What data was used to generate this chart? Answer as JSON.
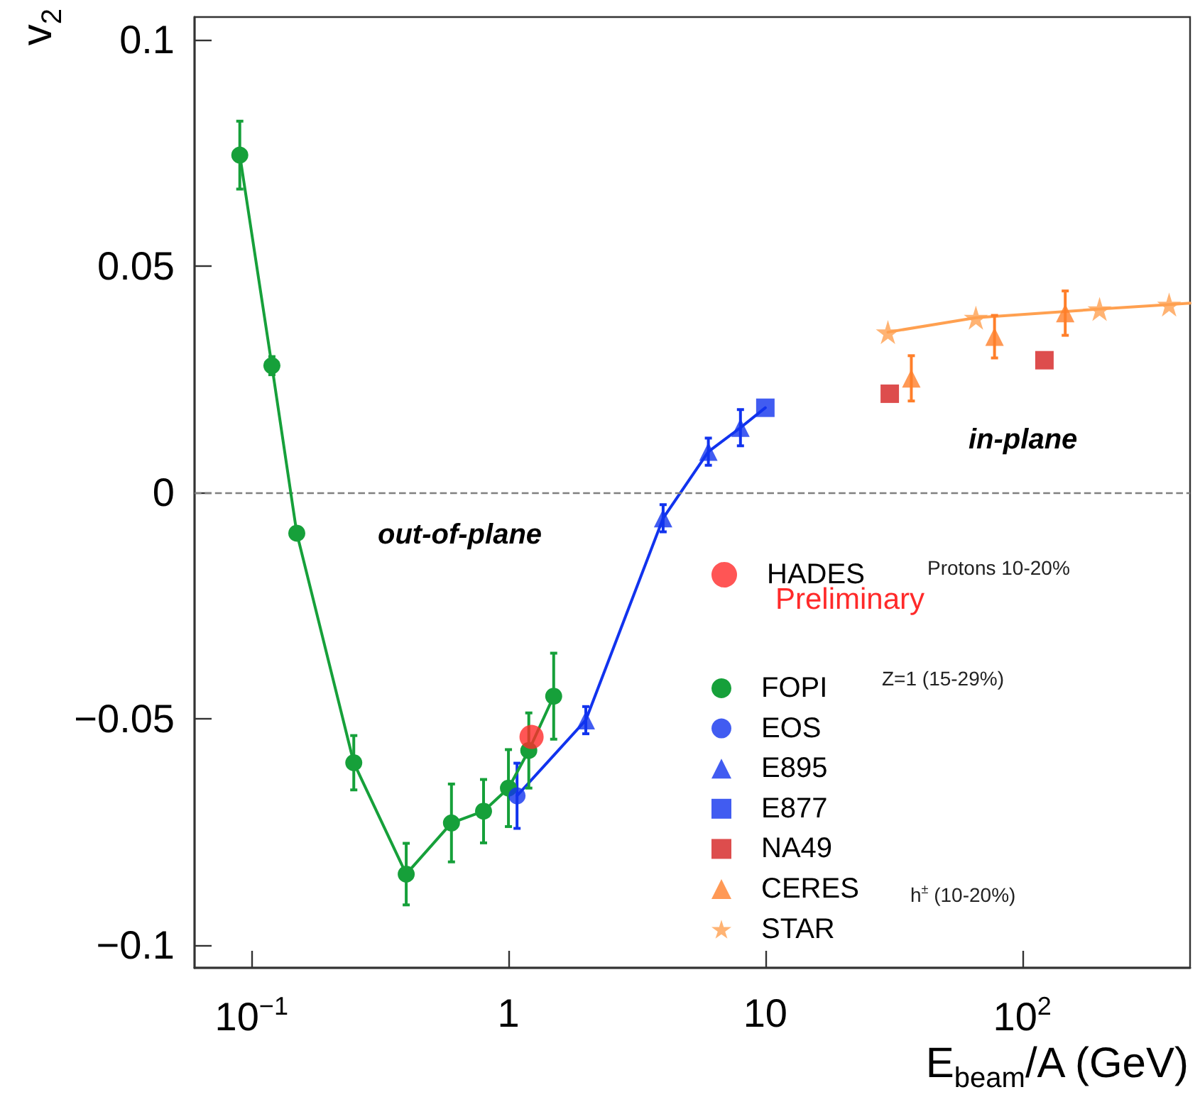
{
  "chart_data": {
    "type": "scatter",
    "xlabel": "E$_{beam}$/A (GeV)",
    "ylabel": "v$_{2}$",
    "log": "x",
    "xlim": [
      0.06,
      450
    ],
    "ylim": [
      -0.105,
      0.105
    ],
    "xticks": [
      {
        "value": 0.1,
        "label": "10$^{−1}$"
      },
      1,
      10,
      {
        "value": 100,
        "label": "10$^{2}$"
      }
    ],
    "yticks": [
      {
        "value": -0.1,
        "label": "−0.1"
      },
      {
        "value": -0.05,
        "label": "−0.05"
      },
      0,
      0.05,
      0.1
    ],
    "grid": false,
    "legend": "bottom right",
    "ref_lines": [
      {
        "axis": "y",
        "value": 0,
        "color": "#808080",
        "line_style": "dashed"
      }
    ],
    "annotations": [
      "out-of-plane",
      "in-plane",
      "Protons 10-20%",
      "Preliminary",
      "Z=1 (15-29%)",
      "h$^{±}$ (10-20%)"
    ],
    "series": [
      {
        "name": "HADES",
        "marker": "circle",
        "color": "#ff2a2a",
        "x": [
          1.23
        ],
        "values": [
          -0.054
        ]
      },
      {
        "name": "FOPI",
        "type": "line",
        "marker": "circle",
        "color": "#16a03a",
        "x": [
          0.09,
          0.12,
          0.15,
          0.25,
          0.4,
          0.6,
          0.8,
          1.0,
          1.2,
          1.5
        ],
        "values": [
          0.0745,
          0.028,
          -0.009,
          -0.0597,
          -0.0843,
          -0.073,
          -0.0704,
          -0.0653,
          -0.057,
          -0.045
        ],
        "errors": [
          0.0075,
          0.002,
          null,
          0.006,
          0.0068,
          0.0086,
          0.007,
          0.0085,
          0.0083,
          0.0095
        ]
      },
      {
        "name": "EOS",
        "marker": "circle",
        "color": "#1133ee",
        "x": [
          1.08
        ],
        "values": [
          -0.067
        ],
        "errors": [
          0.0072
        ]
      },
      {
        "name": "E895",
        "marker": "triangle",
        "color": "#1133ee",
        "x": [
          2,
          4,
          6,
          8
        ],
        "values": [
          -0.0503,
          -0.0057,
          0.009,
          0.0143
        ],
        "errors": [
          0.003,
          0.003,
          0.003,
          0.004
        ]
      },
      {
        "name": "E877",
        "marker": "square",
        "color": "#1133ee",
        "x": [
          10
        ],
        "values": [
          0.0187
        ]
      },
      {
        "name": "NA49",
        "marker": "square",
        "color": "#d42020",
        "x": [
          30.5,
          122
        ],
        "values": [
          0.0218,
          0.0292
        ]
      },
      {
        "name": "CERES",
        "marker": "triangle",
        "color": "#ff7f2a",
        "x": [
          37,
          78,
          147
        ],
        "values": [
          0.0252,
          0.0344,
          0.0396
        ],
        "errors": [
          0.005,
          0.0047,
          0.0049
        ]
      },
      {
        "name": "STAR",
        "marker": "star",
        "color": "#ffa050",
        "x": [
          30,
          66,
          200,
          373
        ],
        "values": [
          0.0354,
          0.0386,
          0.0405,
          0.0415
        ]
      },
      {
        "type": "line",
        "marker": "none",
        "color": "#1133ee",
        "x": [
          1.08,
          2,
          4,
          6,
          8,
          10
        ],
        "values": [
          -0.067,
          -0.0503,
          -0.0057,
          0.009,
          0.0143,
          0.0187
        ]
      },
      {
        "type": "line",
        "marker": "none",
        "color": "#ffa050",
        "x": [
          30,
          66,
          200,
          373,
          450
        ],
        "values": [
          0.0354,
          0.0386,
          0.0405,
          0.0415,
          0.0418
        ]
      }
    ]
  }
}
